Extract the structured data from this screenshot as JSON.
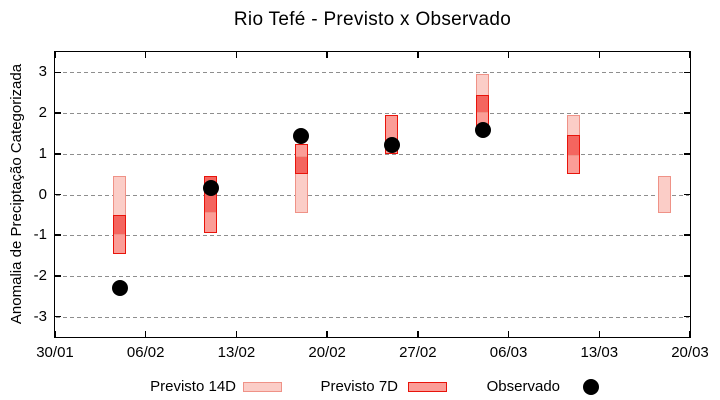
{
  "title": "Rio Tefé - Previsto x Observado",
  "y_axis": {
    "label": "Anomalia de Preciptação Categorizada",
    "ticks": [
      "3",
      "2",
      "1",
      "0",
      "-1",
      "-2",
      "-3"
    ]
  },
  "x_axis": {
    "ticks": [
      "30/01",
      "06/02",
      "13/02",
      "20/02",
      "27/02",
      "06/03",
      "13/03",
      "20/03"
    ]
  },
  "legend": {
    "previsto_14d_label": "Previsto 14D",
    "previsto_7d_label": "Previsto 7D",
    "observado_label": "Observado"
  },
  "colors": {
    "previsto_14d_fill": "#fbcdc7",
    "previsto_14d_border": "#ef9287",
    "previsto_7d_fill": "#fb9d97",
    "previsto_7d_border": "#e8140b",
    "overlap_fill": "#f4655f",
    "observado": "#000000",
    "grid": "#8e8e8e",
    "axis": "#000000"
  },
  "chart_data": {
    "type": "interval-bars+scatter",
    "title": "Rio Tefé - Previsto x Observado",
    "xlabel": "",
    "ylabel": "Anomalia de Preciptação Categorizada",
    "ylim": [
      -3.5,
      3.5
    ],
    "x_range_days": [
      0,
      49
    ],
    "x_tick_days": [
      0,
      7,
      14,
      21,
      28,
      35,
      42,
      49
    ],
    "x_tick_labels": [
      "30/01",
      "06/02",
      "13/02",
      "20/02",
      "27/02",
      "06/03",
      "13/03",
      "20/03"
    ],
    "grid_values": [
      3,
      2,
      1,
      0,
      -1,
      -2,
      -3
    ],
    "grid": "horizontal-dashed",
    "legend_position": "below",
    "series_names": [
      "Previsto 14D",
      "Previsto 7D",
      "Observado"
    ],
    "clusters": [
      {
        "date": "04/02",
        "day": 5,
        "previsto_14d": [
          -1.0,
          0.45
        ],
        "previsto_7d": [
          -1.45,
          -0.5
        ],
        "observado": -2.3
      },
      {
        "date": "11/02",
        "day": 12,
        "previsto_14d": [
          -0.45,
          0.45
        ],
        "previsto_7d": [
          -0.95,
          0.45
        ],
        "observado": 0.15
      },
      {
        "date": "18/02",
        "day": 19,
        "previsto_14d": [
          -0.45,
          0.95
        ],
        "previsto_7d": [
          0.5,
          1.25
        ],
        "observado": 1.43
      },
      {
        "date": "25/02",
        "day": 26,
        "previsto_14d": null,
        "previsto_7d": [
          1.0,
          1.95
        ],
        "observado": 1.22
      },
      {
        "date": "04/03",
        "day": 33,
        "previsto_14d": [
          2.0,
          2.95
        ],
        "previsto_7d": [
          1.5,
          2.45
        ],
        "observado": 1.58
      },
      {
        "date": "11/03",
        "day": 40,
        "previsto_14d": [
          0.95,
          1.95
        ],
        "previsto_7d": [
          0.5,
          1.45
        ],
        "observado": null
      },
      {
        "date": "18/03",
        "day": 47,
        "previsto_14d": [
          -0.45,
          0.45
        ],
        "previsto_7d": null,
        "observado": null
      }
    ]
  }
}
